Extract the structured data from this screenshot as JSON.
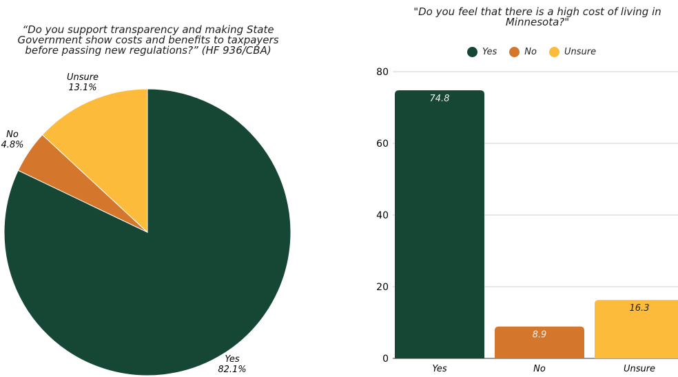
{
  "charts": {
    "pie": {
      "title_lines": [
        "“Do you support transparency and making State",
        "Government show costs and benefits to taxpayers",
        "before passing new regulations?” (HF 936/CBA)"
      ]
    },
    "bar": {
      "title_lines": [
        "\"Do you feel that there is a high cost of living in",
        "Minnesota?\""
      ]
    }
  },
  "chart_data": [
    {
      "type": "pie",
      "title": "“Do you support transparency and making State Government show costs and benefits to taxpayers before passing new regulations?” (HF 936/CBA)",
      "slices": [
        {
          "label": "Yes",
          "value": 82.1,
          "value_label": "82.1%",
          "color": "#154734"
        },
        {
          "label": "No",
          "value": 4.8,
          "value_label": "4.8%",
          "color": "#d4762b"
        },
        {
          "label": "Unsure",
          "value": 13.1,
          "value_label": "13.1%",
          "color": "#fdbb3c"
        }
      ]
    },
    {
      "type": "bar",
      "title": "\"Do you feel that there is a high cost of living in Minnesota?\"",
      "categories": [
        "Yes",
        "No",
        "Unsure"
      ],
      "values": [
        74.8,
        8.9,
        16.3
      ],
      "value_labels": [
        "74.8",
        "8.9",
        "16.3"
      ],
      "colors": [
        "#154734",
        "#d4762b",
        "#fdbb3c"
      ],
      "ylim": [
        0,
        80
      ],
      "yticks": [
        0,
        20,
        40,
        60,
        80
      ],
      "grid": true,
      "legend": {
        "placement": "top",
        "entries": [
          "Yes",
          "No",
          "Unsure"
        ]
      }
    }
  ]
}
